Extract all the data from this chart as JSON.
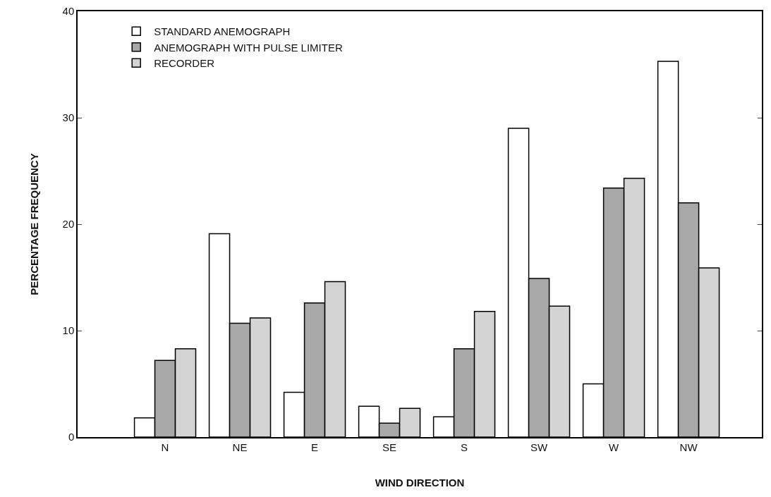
{
  "chart_data": {
    "type": "bar",
    "xlabel": "WIND DIRECTION",
    "ylabel": "PERCENTAGE FREQUENCY",
    "categories": [
      "N",
      "NE",
      "E",
      "SE",
      "S",
      "SW",
      "W",
      "NW"
    ],
    "series": [
      {
        "name": "STANDARD ANEMOGRAPH",
        "color": "#ffffff",
        "values": [
          1.8,
          19.1,
          4.2,
          2.9,
          1.9,
          29.0,
          5.0,
          35.3
        ]
      },
      {
        "name": "ANEMOGRAPH WITH PULSE LIMITER",
        "color": "#a8a8a8",
        "values": [
          7.2,
          10.7,
          12.6,
          1.3,
          8.3,
          14.9,
          23.4,
          22.0
        ]
      },
      {
        "name": "RECORDER",
        "color": "#d4d4d4",
        "values": [
          8.3,
          11.2,
          14.6,
          2.7,
          11.8,
          12.3,
          24.3,
          15.9
        ]
      }
    ],
    "ylim": [
      0,
      40
    ],
    "yticks": [
      0,
      10,
      20,
      30,
      40
    ],
    "grid": false,
    "legend": "top left"
  }
}
